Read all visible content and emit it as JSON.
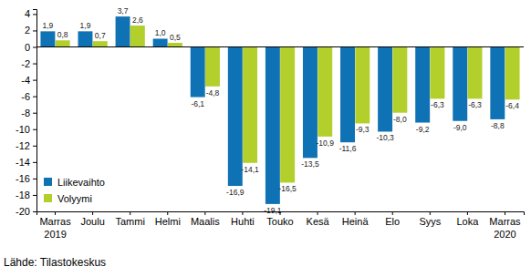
{
  "chart_data": {
    "type": "bar",
    "categories": [
      "Marras\n2019",
      "Joulu",
      "Tammi",
      "Helmi",
      "Maalis",
      "Huhti",
      "Touko",
      "Kesä",
      "Heinä",
      "Elo",
      "Syys",
      "Loka",
      "Marras\n2020"
    ],
    "series": [
      {
        "name": "Liikevaihto",
        "color": "#0f72b5",
        "values": [
          1.9,
          1.9,
          3.7,
          1.0,
          -6.1,
          -16.9,
          -19.1,
          -13.5,
          -11.6,
          -10.3,
          -9.2,
          -9.0,
          -8.8
        ],
        "value_labels": [
          "1,9",
          "1,9",
          "3,7",
          "1,0",
          "-6,1",
          "-16,9",
          "-19,1",
          "-13,5",
          "-11,6",
          "-10,3",
          "-9,2",
          "-9,0",
          "-8,8"
        ]
      },
      {
        "name": "Volyymi",
        "color": "#b3cf2c",
        "values": [
          0.8,
          0.7,
          2.6,
          0.5,
          -4.8,
          -14.1,
          -16.5,
          -10.9,
          -9.3,
          -8.0,
          -6.3,
          -6.3,
          -6.4
        ],
        "value_labels": [
          "0,8",
          "0,7",
          "2,6",
          "0,5",
          "-4,8",
          "-14,1",
          "-16,5",
          "-10,9",
          "-9,3",
          "-8,0",
          "-6,3",
          "-6,3",
          "-6,4"
        ]
      }
    ],
    "ylim": [
      -20,
      4.6
    ],
    "yticks": [
      4,
      2,
      0,
      -2,
      -4,
      -6,
      -8,
      -10,
      -12,
      -14,
      -16,
      -18,
      -20
    ],
    "grid": false,
    "legend": "lower left",
    "data_labels": true,
    "annotations": [
      "Lähde: Tilastokeskus"
    ]
  }
}
